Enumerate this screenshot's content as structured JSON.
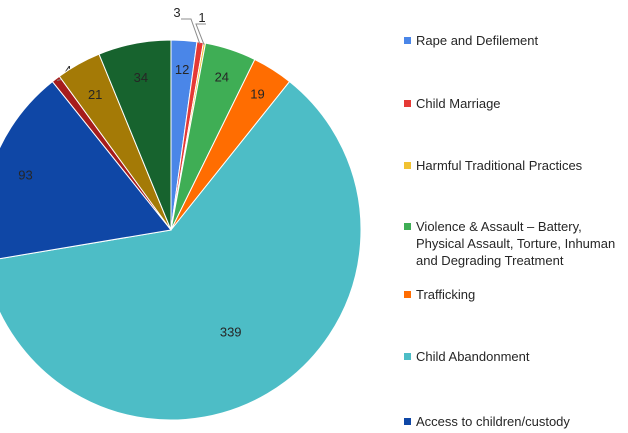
{
  "chart_data": {
    "type": "pie",
    "slices": [
      {
        "label": "Rape and Defilement",
        "value": 12,
        "color": "#4a86e8"
      },
      {
        "label": "Child Marriage",
        "value": 3,
        "color": "#e53935"
      },
      {
        "label": "Harmful Traditional Practices",
        "value": 1,
        "color": "#f1c232"
      },
      {
        "label": "Violence & Assault – Battery, Physical Assault, Torture, Inhuman and Degrading Treatment",
        "value": 24,
        "color": "#3fae55"
      },
      {
        "label": "Trafficking",
        "value": 19,
        "color": "#ff6d01"
      },
      {
        "label": "Child Abandonment",
        "value": 339,
        "color": "#4dbdc6"
      },
      {
        "label": "Access to children/custody",
        "value": 93,
        "color": "#0f47a6"
      },
      {
        "label": "",
        "value": 4,
        "color": "#a61c1c"
      },
      {
        "label": "",
        "value": 21,
        "color": "#a47a06"
      },
      {
        "label": "",
        "value": 34,
        "color": "#17632e"
      }
    ]
  },
  "legend": {
    "items": [
      {
        "label": "Rape and Defilement",
        "color": "#4a86e8"
      },
      {
        "label": "Child Marriage",
        "color": "#e53935"
      },
      {
        "label": "Harmful Traditional Practices",
        "color": "#f1c232"
      },
      {
        "label": "Violence & Assault – Battery, Physical Assault, Torture, Inhuman and Degrading Treatment",
        "color": "#3fae55"
      },
      {
        "label": "Trafficking",
        "color": "#ff6d01"
      },
      {
        "label": "Child Abandonment",
        "color": "#4dbdc6"
      },
      {
        "label": "Access to children/custody",
        "color": "#0f47a6"
      }
    ]
  }
}
